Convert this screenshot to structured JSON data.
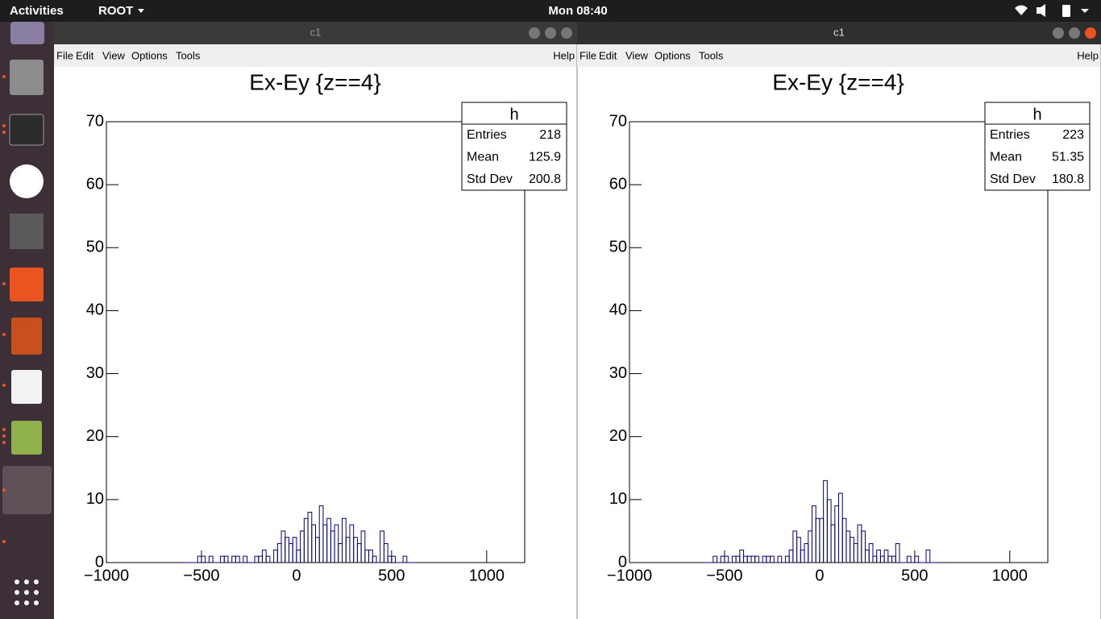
{
  "topbar": {
    "activities": "Activities",
    "app": "ROOT",
    "clock": "Mon 08:40"
  },
  "windows": [
    {
      "title": "c1",
      "menu": [
        "File",
        "Edit",
        "View",
        "Options",
        "Tools"
      ],
      "help": "Help"
    },
    {
      "title": "c1",
      "menu": [
        "File",
        "Edit",
        "View",
        "Options",
        "Tools"
      ],
      "help": "Help"
    }
  ],
  "chart_data": [
    {
      "type": "histogram",
      "title": "Ex-Ey {z==4}",
      "color": "#00007f",
      "bins": [
        -600,
        -580,
        -560,
        -540,
        -520,
        -500,
        -480,
        -460,
        -440,
        -420,
        -400,
        -380,
        -360,
        -340,
        -320,
        -300,
        -280,
        -260,
        -240,
        -220,
        -200,
        -180,
        -160,
        -140,
        -120,
        -100,
        -80,
        -60,
        -40,
        -20,
        0,
        20,
        40,
        60,
        80,
        100,
        120,
        140,
        160,
        180,
        200,
        220,
        240,
        260,
        280,
        300,
        320,
        340,
        360,
        380,
        400,
        420,
        440,
        460,
        480,
        500,
        520,
        540,
        560,
        580,
        600,
        620
      ],
      "values": [
        0,
        0,
        0,
        0,
        1,
        1,
        0,
        1,
        0,
        0,
        1,
        1,
        0,
        1,
        1,
        0,
        1,
        0,
        0,
        1,
        1,
        2,
        1,
        0,
        2,
        3,
        5,
        4,
        3,
        4,
        2,
        5,
        7,
        8,
        6,
        4,
        9,
        6,
        7,
        5,
        6,
        3,
        7,
        4,
        6,
        4,
        3,
        5,
        2,
        2,
        1,
        0,
        5,
        3,
        1,
        1,
        0,
        0,
        1,
        0,
        0
      ],
      "xlim": [
        -1000,
        1200
      ],
      "ylim": [
        0,
        70
      ],
      "xticks": [
        {
          "value": -1000,
          "label": "−1000"
        },
        {
          "value": -500,
          "label": "−500"
        },
        0,
        500,
        1000
      ],
      "yticks": [
        0,
        10,
        20,
        30,
        40,
        50,
        60,
        70
      ],
      "stats": {
        "title": "h",
        "labels": [
          "Entries",
          "Mean",
          "Std Dev"
        ],
        "values": [
          218,
          125.9,
          200.8
        ]
      }
    },
    {
      "type": "histogram",
      "title": "Ex-Ey {z==4}",
      "color": "#00007f",
      "bins": [
        -600,
        -580,
        -560,
        -540,
        -520,
        -500,
        -480,
        -460,
        -440,
        -420,
        -400,
        -380,
        -360,
        -340,
        -320,
        -300,
        -280,
        -260,
        -240,
        -220,
        -200,
        -180,
        -160,
        -140,
        -120,
        -100,
        -80,
        -60,
        -40,
        -20,
        0,
        20,
        40,
        60,
        80,
        100,
        120,
        140,
        160,
        180,
        200,
        220,
        240,
        260,
        280,
        300,
        320,
        340,
        360,
        380,
        400,
        420,
        440,
        460,
        480,
        500,
        520,
        540,
        560,
        580,
        600,
        620
      ],
      "values": [
        0,
        0,
        1,
        0,
        1,
        1,
        0,
        1,
        1,
        2,
        1,
        1,
        1,
        1,
        0,
        1,
        1,
        1,
        0,
        1,
        0,
        1,
        2,
        5,
        4,
        2,
        3,
        5,
        9,
        7,
        7,
        13,
        10,
        6,
        9,
        11,
        7,
        5,
        4,
        3,
        6,
        5,
        2,
        3,
        1,
        2,
        1,
        2,
        1,
        1,
        3,
        0,
        0,
        1,
        0,
        1,
        0,
        0,
        2,
        0,
        0
      ],
      "xlim": [
        -1000,
        1200
      ],
      "ylim": [
        0,
        70
      ],
      "xticks": [
        {
          "value": -1000,
          "label": "−1000"
        },
        {
          "value": -500,
          "label": "−500"
        },
        0,
        500,
        1000
      ],
      "yticks": [
        0,
        10,
        20,
        30,
        40,
        50,
        60,
        70
      ],
      "stats": {
        "title": "h",
        "labels": [
          "Entries",
          "Mean",
          "Std Dev"
        ],
        "values": [
          223,
          51.35,
          180.8
        ]
      }
    }
  ]
}
